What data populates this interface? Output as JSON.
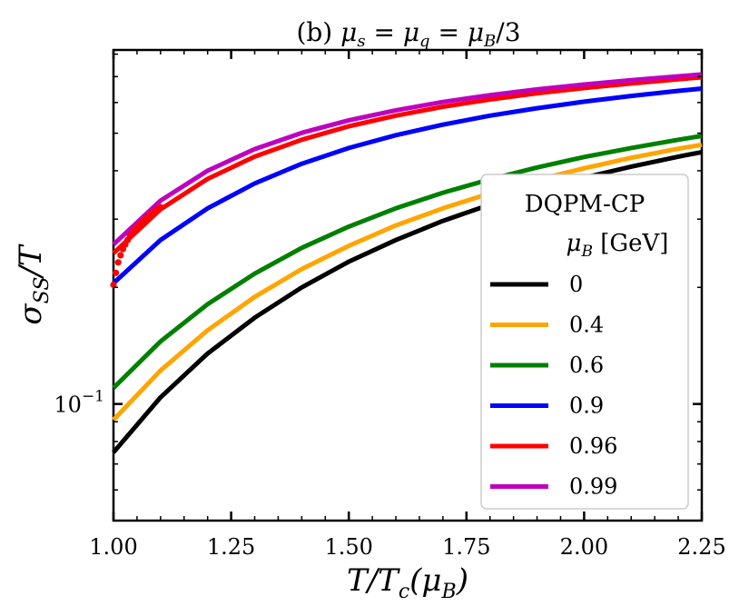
{
  "chart_data": {
    "type": "line",
    "title": "(b) μ_s = μ_q = μ_B/3",
    "xlabel": "T/T_c(μ_B)",
    "ylabel": "σ_SS/T",
    "xlim": [
      1.0,
      2.25
    ],
    "ylim": [
      0.05,
      0.82
    ],
    "yscale": "log",
    "x_ticks": [
      "1.00",
      "1.25",
      "1.50",
      "1.75",
      "2.00",
      "2.25"
    ],
    "y_tick_label": "10^{-1}",
    "legend": {
      "title": "DQPM-CP",
      "subtitle": "μ_B [GeV]",
      "placement": "lower-right"
    },
    "x": [
      1.0,
      1.1,
      1.2,
      1.3,
      1.4,
      1.5,
      1.6,
      1.7,
      1.8,
      1.9,
      2.0,
      2.1,
      2.2,
      2.25
    ],
    "series": [
      {
        "name": "0",
        "color": "#000000",
        "values": [
          0.075,
          0.104,
          0.135,
          0.167,
          0.2,
          0.233,
          0.265,
          0.297,
          0.327,
          0.356,
          0.384,
          0.41,
          0.435,
          0.447
        ]
      },
      {
        "name": "0.4",
        "color": "#ffa500",
        "values": [
          0.091,
          0.122,
          0.155,
          0.189,
          0.223,
          0.256,
          0.289,
          0.32,
          0.35,
          0.379,
          0.406,
          0.432,
          0.456,
          0.467
        ]
      },
      {
        "name": "0.6",
        "color": "#008000",
        "values": [
          0.11,
          0.145,
          0.181,
          0.217,
          0.253,
          0.287,
          0.32,
          0.351,
          0.38,
          0.408,
          0.434,
          0.458,
          0.481,
          0.492
        ]
      },
      {
        "name": "0.9",
        "color": "#0000ff",
        "values": [
          0.205,
          0.265,
          0.32,
          0.371,
          0.417,
          0.458,
          0.494,
          0.526,
          0.555,
          0.58,
          0.603,
          0.624,
          0.643,
          0.652
        ]
      },
      {
        "name": "0.96",
        "color": "#ff0000",
        "values": [
          0.245,
          0.318,
          0.381,
          0.435,
          0.481,
          0.521,
          0.555,
          0.585,
          0.611,
          0.634,
          0.654,
          0.672,
          0.689,
          0.697
        ]
      },
      {
        "name": "0.99",
        "color": "#bf00bf",
        "values": [
          0.258,
          0.335,
          0.4,
          0.455,
          0.501,
          0.54,
          0.573,
          0.602,
          0.627,
          0.649,
          0.668,
          0.685,
          0.701,
          0.709
        ]
      }
    ],
    "scatter_series": {
      "color": "#ff0000",
      "x": [
        1.0,
        1.005,
        1.01,
        1.015,
        1.02,
        1.025,
        1.03,
        1.035,
        1.04,
        1.045,
        1.05,
        1.055,
        1.06,
        1.065,
        1.07,
        1.075,
        1.08,
        1.085,
        1.09,
        1.095,
        1.1
      ],
      "values": [
        0.203,
        0.218,
        0.232,
        0.242,
        0.251,
        0.258,
        0.265,
        0.271,
        0.276,
        0.281,
        0.286,
        0.29,
        0.294,
        0.298,
        0.302,
        0.306,
        0.31,
        0.313,
        0.316,
        0.319,
        0.322
      ]
    }
  }
}
